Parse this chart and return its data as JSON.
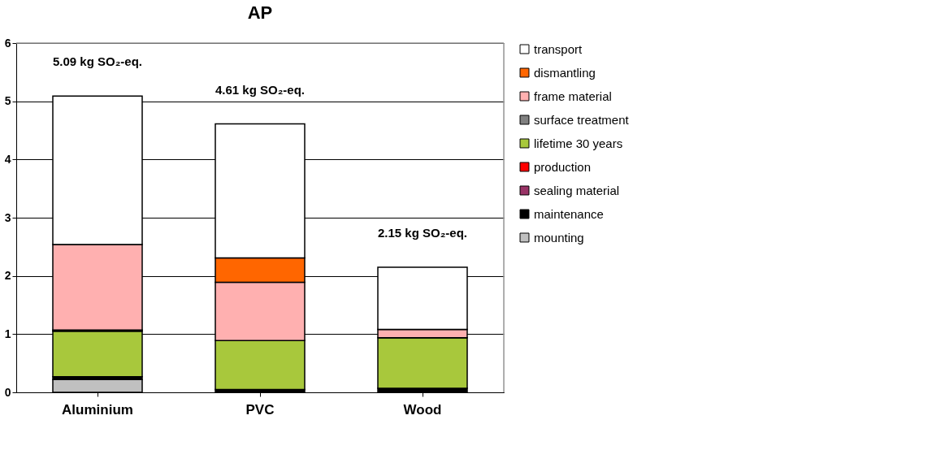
{
  "chart_data": {
    "type": "bar",
    "title": "AP",
    "stacked": true,
    "categories": [
      "Aluminium",
      "PVC",
      "Wood"
    ],
    "series": [
      {
        "name": "mounting",
        "color": "#c0c0c0",
        "values": [
          0.22,
          0,
          0
        ]
      },
      {
        "name": "maintenance",
        "color": "#000000",
        "values": [
          0.05,
          0.05,
          0.07
        ]
      },
      {
        "name": "sealing material",
        "color": "#993366",
        "values": [
          0,
          0,
          0
        ]
      },
      {
        "name": "production",
        "color": "#ff0000",
        "values": [
          0,
          0,
          0
        ]
      },
      {
        "name": "lifetime 30 years",
        "color": "#a8c83c",
        "values": [
          0.78,
          0.84,
          0.87
        ]
      },
      {
        "name": "surface treatment",
        "color": "#808080",
        "values": [
          0.02,
          0,
          0
        ]
      },
      {
        "name": "frame material",
        "color": "#ffb0b0",
        "values": [
          1.47,
          1.0,
          0.14
        ]
      },
      {
        "name": "dismantling",
        "color": "#ff6600",
        "values": [
          0,
          0.42,
          0
        ]
      },
      {
        "name": "transport",
        "color": "#ffffff",
        "values": [
          2.55,
          2.3,
          1.07
        ]
      }
    ],
    "totals": [
      "5.09 kg SO₂-eq.",
      "4.61 kg SO₂-eq.",
      "2.15 kg SO₂-eq."
    ],
    "ylim": [
      0,
      6
    ],
    "yticks": [
      0,
      1,
      2,
      3,
      4,
      5,
      6
    ],
    "grid": "y",
    "legend": "right"
  }
}
